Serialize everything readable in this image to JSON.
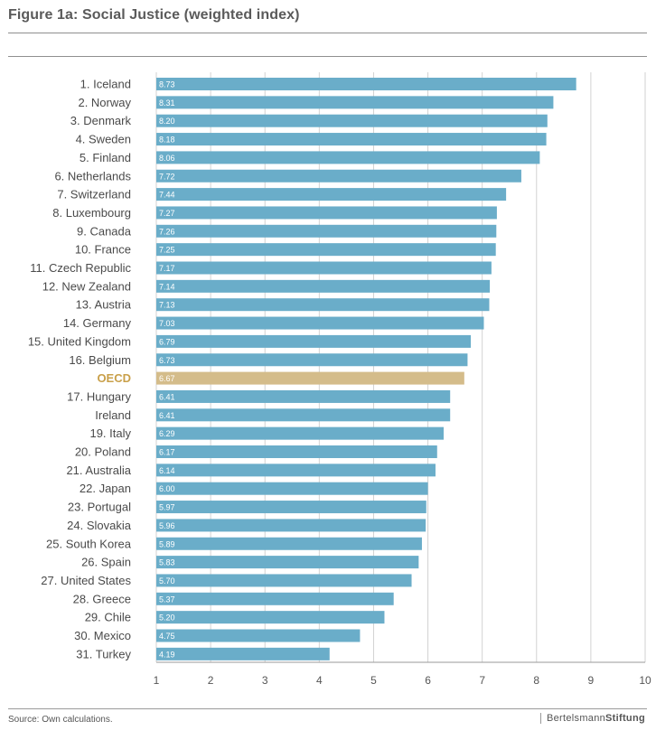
{
  "title": "Figure 1a: Social Justice (weighted index)",
  "source": "Source: Own calculations.",
  "logo": {
    "part1": "Bertelsmann",
    "part2": "Stiftung"
  },
  "colors": {
    "bar": "#6aadc9",
    "highlight": "#d4bc8a",
    "highlight_label": "#c9a04a",
    "label": "#4a4a4a"
  },
  "chart_data": {
    "type": "bar",
    "orientation": "horizontal",
    "xlim": [
      1,
      10
    ],
    "xticks": [
      "1",
      "2",
      "3",
      "4",
      "5",
      "6",
      "7",
      "8",
      "9",
      "10"
    ],
    "grid": true,
    "highlight": "OECD",
    "categories": [
      "1. Iceland",
      "2. Norway",
      "3. Denmark",
      "4. Sweden",
      "5. Finland",
      "6. Netherlands",
      "7. Switzerland",
      "8. Luxembourg",
      "9. Canada",
      "10. France",
      "11. Czech Republic",
      "12. New Zealand",
      "13. Austria",
      "14. Germany",
      "15. United Kingdom",
      "16. Belgium",
      "OECD",
      "17. Hungary",
      "Ireland",
      "19. Italy",
      "20. Poland",
      "21. Australia",
      "22.  Japan",
      "23. Portugal",
      "24. Slovakia",
      "25. South Korea",
      "26. Spain",
      "27. United States",
      "28. Greece",
      "29. Chile",
      "30. Mexico",
      "31. Turkey"
    ],
    "values": [
      8.73,
      8.31,
      8.2,
      8.18,
      8.06,
      7.72,
      7.44,
      7.27,
      7.26,
      7.25,
      7.17,
      7.14,
      7.13,
      7.03,
      6.79,
      6.73,
      6.67,
      6.41,
      6.41,
      6.29,
      6.17,
      6.14,
      6.0,
      5.97,
      5.96,
      5.89,
      5.83,
      5.7,
      5.37,
      5.2,
      4.75,
      4.19
    ],
    "value_labels": [
      "8.73",
      "8.31",
      "8.20",
      "8.18",
      "8.06",
      "7.72",
      "7.44",
      "7.27",
      "7.26",
      "7.25",
      "7.17",
      "7.14",
      "7.13",
      "7.03",
      "6.79",
      "6.73",
      "6.67",
      "6.41",
      "6.41",
      "6.29",
      "6.17",
      "6.14",
      "6.00",
      "5.97",
      "5.96",
      "5.89",
      "5.83",
      "5.70",
      "5.37",
      "5.20",
      "4.75",
      "4.19"
    ]
  }
}
